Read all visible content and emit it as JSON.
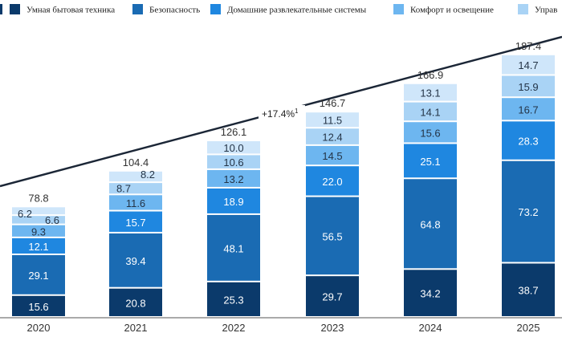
{
  "chart_data": {
    "type": "bar",
    "stacked": true,
    "categories": [
      "2020",
      "2021",
      "2022",
      "2023",
      "2024",
      "2025"
    ],
    "series": [
      {
        "name": "Умная бытовая техника",
        "color": "#0b3a6b",
        "values": [
          15.6,
          20.8,
          25.3,
          29.7,
          34.2,
          38.7
        ]
      },
      {
        "name": "Безопасность",
        "color": "#1a6bb3",
        "values": [
          29.1,
          39.4,
          48.1,
          56.5,
          64.8,
          73.2
        ]
      },
      {
        "name": "Домашние развлекательные системы",
        "color": "#1f87e0",
        "values": [
          12.1,
          15.7,
          18.9,
          22.0,
          25.1,
          28.3
        ]
      },
      {
        "name": "Комфорт и освещение",
        "color": "#6db6f0",
        "values": [
          9.3,
          11.6,
          13.2,
          14.5,
          15.6,
          16.7
        ]
      },
      {
        "name": "Управ",
        "color": "#a9d3f5",
        "values": [
          6.6,
          8.7,
          10.6,
          12.4,
          14.1,
          15.9
        ]
      },
      {
        "name": "",
        "color": "#cfe6fa",
        "values": [
          6.2,
          8.2,
          10.0,
          11.5,
          13.1,
          14.7
        ]
      }
    ],
    "totals": [
      "78.8",
      "104.4",
      "126.1",
      "146.7",
      "166.9",
      "187.4"
    ],
    "annotation": "+17.4%",
    "annotation_sup": "1",
    "legend_position": "top"
  }
}
